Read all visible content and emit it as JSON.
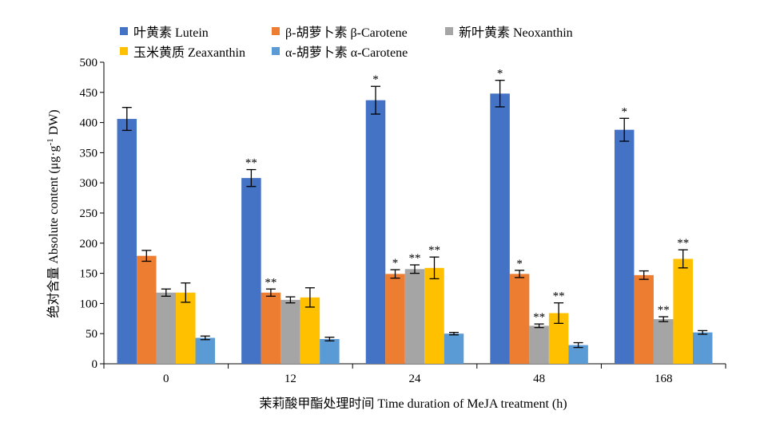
{
  "chart_data": {
    "type": "bar",
    "xlabel": "茉莉酸甲酯处理时间 Time duration of MeJA treatment (h)",
    "ylabel": "绝对含量 Absolute content (μg·g",
    "ylabel_sup": "-1",
    "ylabel_tail": " DW)",
    "categories": [
      "0",
      "12",
      "24",
      "48",
      "168"
    ],
    "ylim": [
      0,
      500
    ],
    "yticks": [
      "0",
      "50",
      "100",
      "150",
      "200",
      "250",
      "300",
      "350",
      "400",
      "450",
      "500"
    ],
    "grid": false,
    "legend_position": "top",
    "series": [
      {
        "name": "叶黄素 Lutein",
        "color": "#4472c4",
        "values": [
          406,
          308,
          437,
          448,
          388
        ],
        "errors": [
          19,
          14,
          23,
          22,
          19
        ],
        "sig": [
          "",
          "**",
          "*",
          "*",
          "*"
        ]
      },
      {
        "name": "β-胡萝卜素 β-Carotene",
        "color": "#ed7d31",
        "values": [
          179,
          118,
          149,
          149,
          147
        ],
        "errors": [
          9,
          6,
          7,
          6,
          7
        ],
        "sig": [
          "",
          "**",
          "*",
          "*",
          ""
        ]
      },
      {
        "name": "新叶黄素 Neoxanthin",
        "color": "#a5a5a5",
        "values": [
          118,
          106,
          157,
          63,
          74
        ],
        "errors": [
          6,
          5,
          7,
          3,
          4
        ],
        "sig": [
          "",
          "",
          "**",
          "**",
          "**"
        ]
      },
      {
        "name": "玉米黄质 Zeaxanthin",
        "color": "#ffc000",
        "values": [
          118,
          110,
          159,
          84,
          174
        ],
        "errors": [
          16,
          16,
          18,
          17,
          15
        ],
        "sig": [
          "",
          "",
          "**",
          "**",
          "**"
        ]
      },
      {
        "name": "α-胡萝卜素 α-Carotene",
        "color": "#5b9bd5",
        "values": [
          43,
          41,
          50,
          31,
          52
        ],
        "errors": [
          3,
          3,
          2,
          4,
          3
        ],
        "sig": [
          "",
          "",
          "",
          "",
          ""
        ]
      }
    ]
  }
}
